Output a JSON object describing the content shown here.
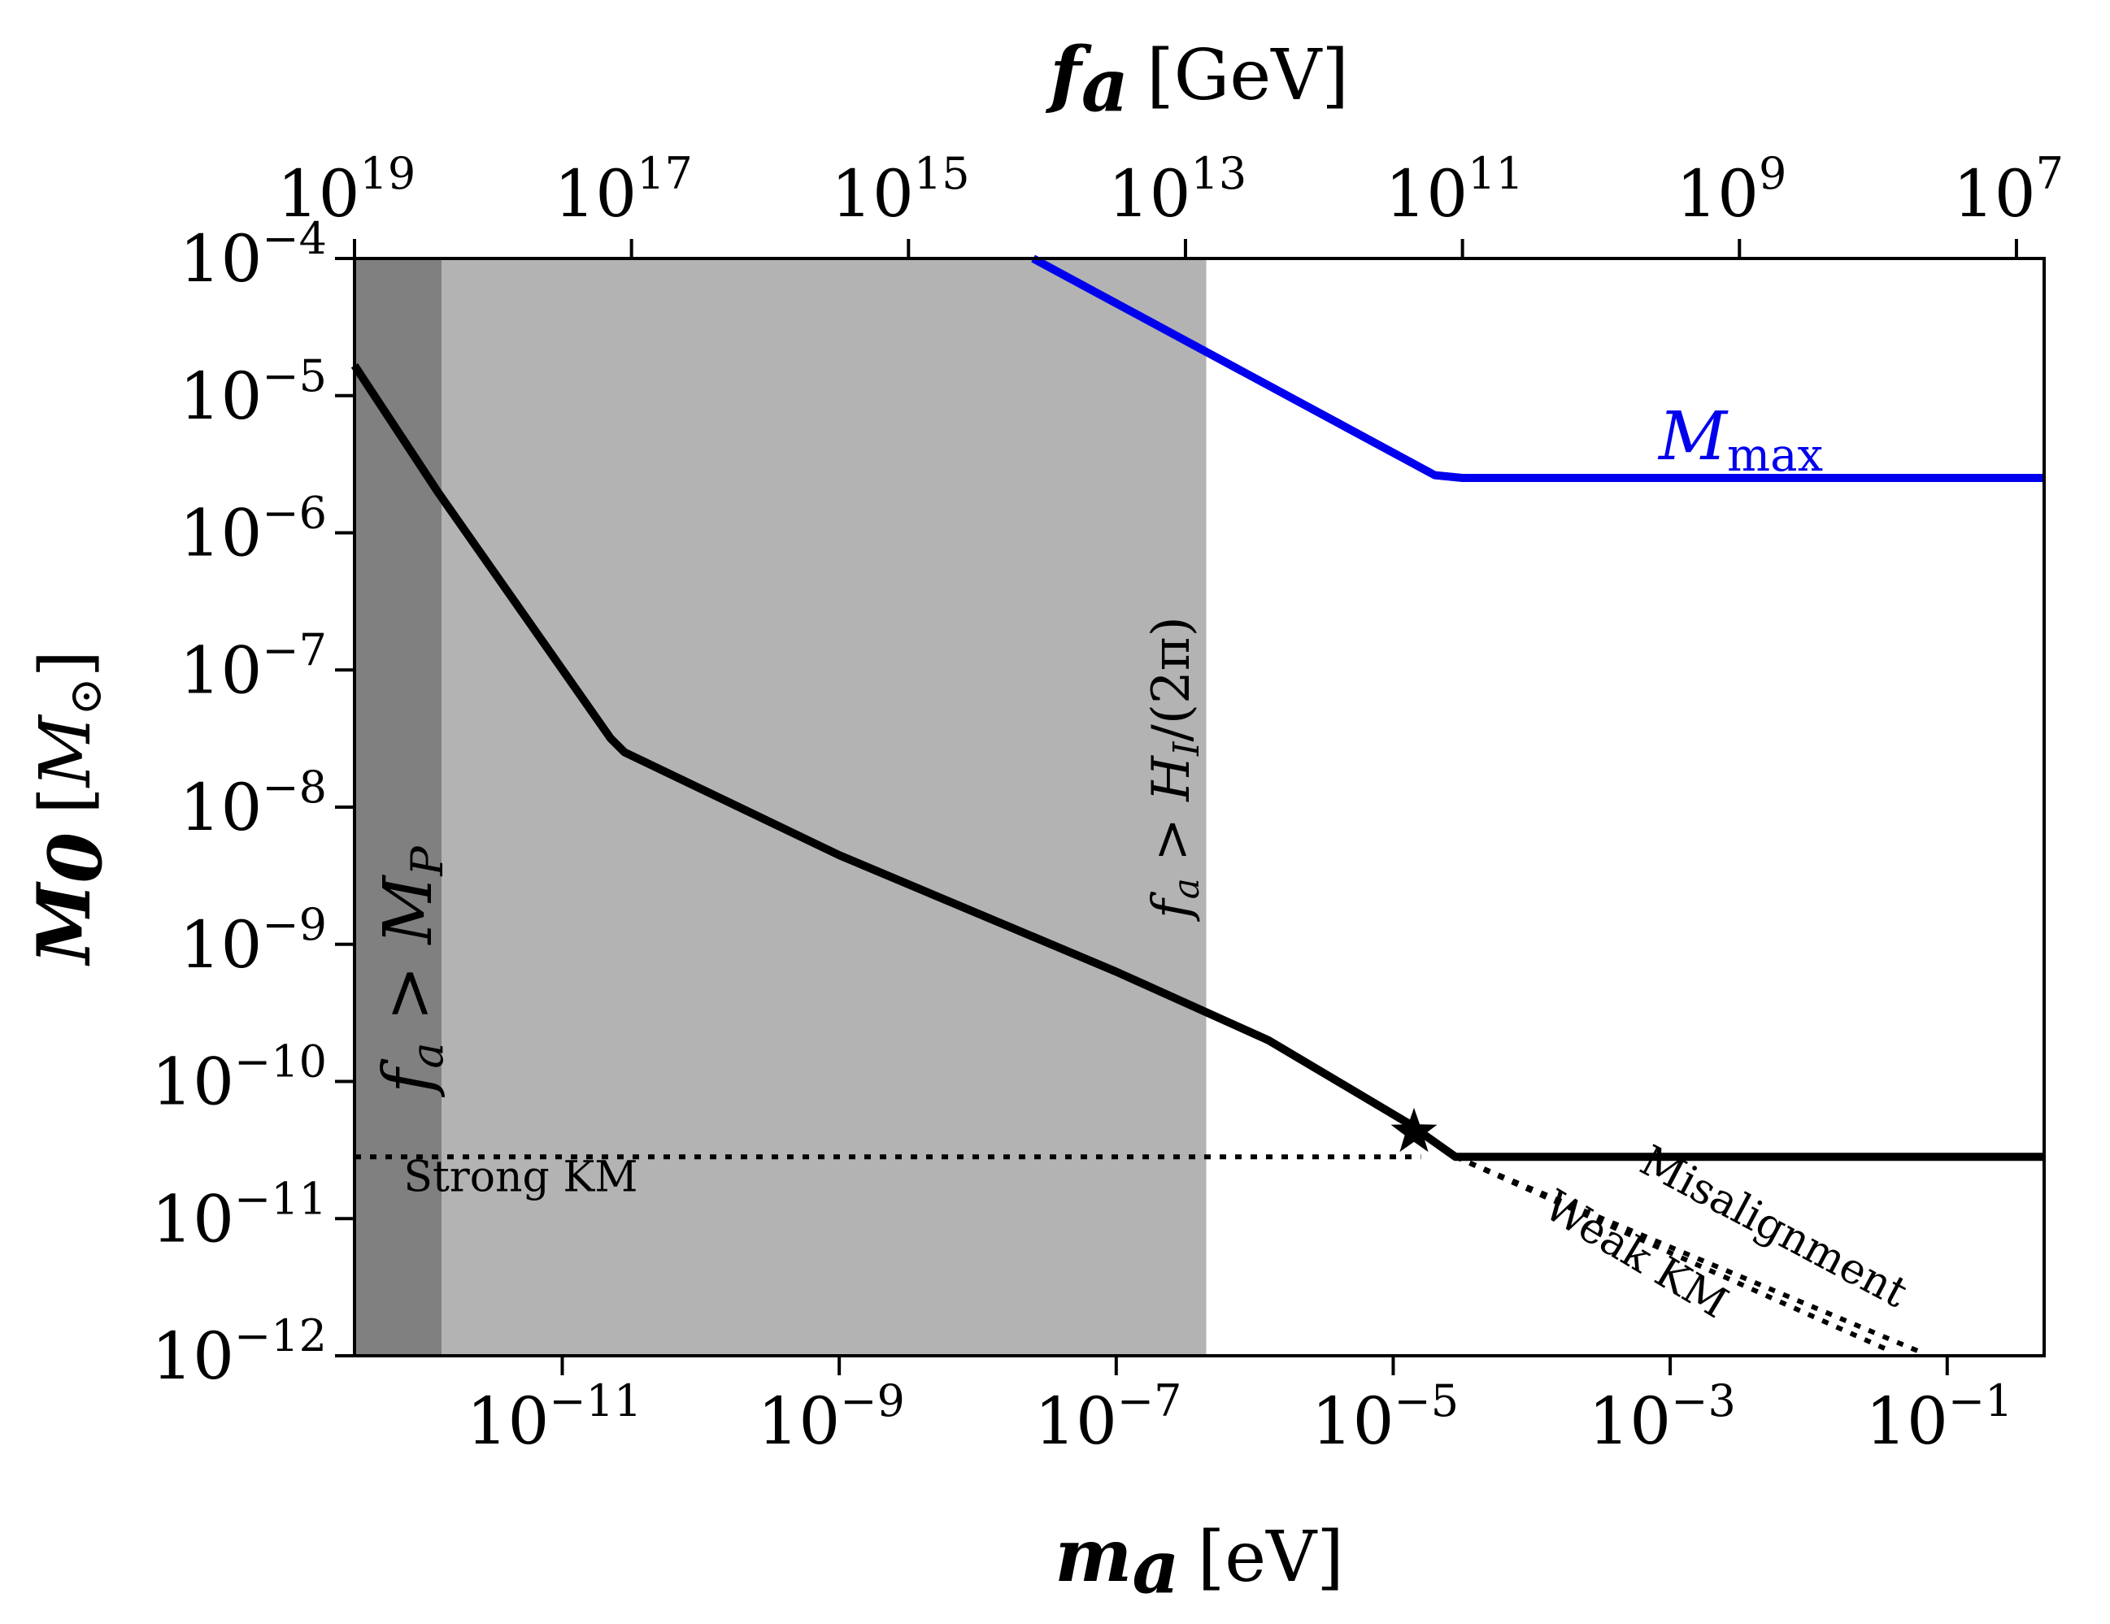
{
  "chart_data": {
    "type": "line",
    "xaxis": {
      "label_symbol": "m",
      "label_sub": "a",
      "label_unit": "[eV]",
      "scale": "log",
      "xlim": [
        -12.5,
        -0.3
      ],
      "ticks": [
        {
          "base": "10",
          "exp": "−11",
          "value": -11
        },
        {
          "base": "10",
          "exp": "−9",
          "value": -9
        },
        {
          "base": "10",
          "exp": "−7",
          "value": -7
        },
        {
          "base": "10",
          "exp": "−5",
          "value": -5
        },
        {
          "base": "10",
          "exp": "−3",
          "value": -3
        },
        {
          "base": "10",
          "exp": "−1",
          "value": -1
        }
      ]
    },
    "top_axis": {
      "label_symbol": "f",
      "label_sub": "a",
      "label_unit": "[GeV]",
      "ticks": [
        {
          "base": "10",
          "exp": "19",
          "value": -12.5
        },
        {
          "base": "10",
          "exp": "17",
          "value": -10.5
        },
        {
          "base": "10",
          "exp": "15",
          "value": -8.5
        },
        {
          "base": "10",
          "exp": "13",
          "value": -6.5
        },
        {
          "base": "10",
          "exp": "11",
          "value": -4.5
        },
        {
          "base": "10",
          "exp": "9",
          "value": -2.5
        },
        {
          "base": "10",
          "exp": "7",
          "value": -0.5
        }
      ]
    },
    "yaxis": {
      "label_symbol": "M",
      "label_sub": "0",
      "label_unit_open": "[",
      "label_unit_sym": "M",
      "label_unit_sub": "⊙",
      "label_unit_close": "]",
      "scale": "log",
      "ylim": [
        -12,
        -4
      ],
      "ticks": [
        {
          "base": "10",
          "exp": "−4",
          "value": -4
        },
        {
          "base": "10",
          "exp": "−5",
          "value": -5
        },
        {
          "base": "10",
          "exp": "−6",
          "value": -6
        },
        {
          "base": "10",
          "exp": "−7",
          "value": -7
        },
        {
          "base": "10",
          "exp": "−8",
          "value": -8
        },
        {
          "base": "10",
          "exp": "−9",
          "value": -9
        },
        {
          "base": "10",
          "exp": "−10",
          "value": -10
        },
        {
          "base": "10",
          "exp": "−11",
          "value": -11
        },
        {
          "base": "10",
          "exp": "−12",
          "value": -12
        }
      ]
    },
    "shaded_regions": [
      {
        "name": "fa-gt-MP",
        "x_from": -12.5,
        "x_to": -11.87,
        "color": "#808080",
        "label_main": "f",
        "label_sub": "a",
        "label_rest": " > M",
        "label_rest_sub": "P"
      },
      {
        "name": "fa-gt-HI",
        "x_from": -11.87,
        "x_to": -6.35,
        "color": "#b3b3b3",
        "label_main": "f",
        "label_sub": "a",
        "label_rest": " > H",
        "label_rest_sub": "I",
        "label_tail": "/(2π)"
      }
    ],
    "series": [
      {
        "name": "M_max",
        "label_main": "M",
        "label_sub": "max",
        "color": "#0000ee",
        "style": "solid",
        "points": [
          [
            -7.6,
            -4.0
          ],
          [
            -4.7,
            -5.58
          ],
          [
            -4.5,
            -5.6
          ],
          [
            -0.3,
            -5.6
          ]
        ]
      },
      {
        "name": "M0 solid",
        "color": "#000000",
        "style": "solid",
        "points": [
          [
            -12.5,
            -4.78
          ],
          [
            -11.9,
            -5.7
          ],
          [
            -10.65,
            -7.5
          ],
          [
            -10.55,
            -7.6
          ],
          [
            -9.0,
            -8.35
          ],
          [
            -7.0,
            -9.2
          ],
          [
            -5.9,
            -9.7
          ],
          [
            -4.9,
            -10.3
          ],
          [
            -4.55,
            -10.55
          ],
          [
            -0.3,
            -10.55
          ]
        ]
      },
      {
        "name": "Strong KM",
        "color": "#000000",
        "style": "dotted",
        "points": [
          [
            -12.5,
            -10.55
          ],
          [
            -4.8,
            -10.55
          ]
        ]
      },
      {
        "name": "Misalignment",
        "color": "#000000",
        "style": "dotted",
        "points": [
          [
            -4.55,
            -10.55
          ],
          [
            -1.2,
            -11.97
          ]
        ]
      },
      {
        "name": "Weak KM",
        "color": "#000000",
        "style": "dotted",
        "points": [
          [
            -4.55,
            -10.55
          ],
          [
            -1.4,
            -11.97
          ]
        ]
      }
    ],
    "markers": [
      {
        "name": "transition-star",
        "shape": "star",
        "x": -4.85,
        "y": -10.37
      }
    ],
    "annotations": [
      {
        "name": "strong-km",
        "text": "Strong KM",
        "x": -11.3,
        "y": -10.8,
        "rotate": 0
      },
      {
        "name": "misalignment",
        "text": "Misalignment",
        "x": -2.3,
        "y": -11.15,
        "rotate": 28
      },
      {
        "name": "weak-km",
        "text": "Weak KM",
        "x": -3.3,
        "y": -11.35,
        "rotate": 31
      }
    ]
  }
}
